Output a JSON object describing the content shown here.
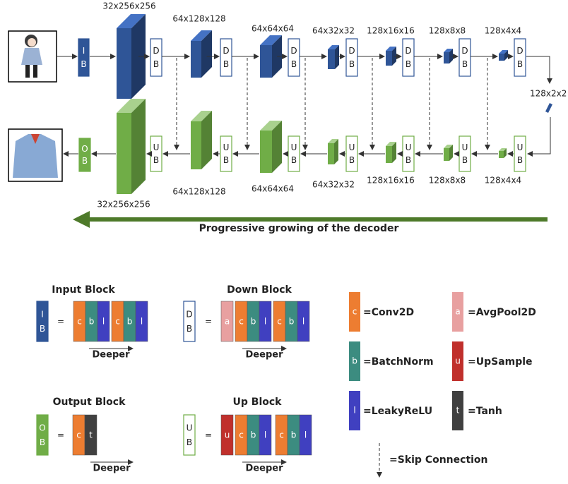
{
  "abbr": {
    "input": [
      "I",
      "B"
    ],
    "down": [
      "D",
      "B"
    ],
    "up": [
      "U",
      "B"
    ],
    "output": [
      "O",
      "B"
    ]
  },
  "encoder_sizes": [
    "32x256x256",
    "64x128x128",
    "64x64x64",
    "64x32x32",
    "128x16x16",
    "128x8x8",
    "128x4x4",
    "128x2x2"
  ],
  "decoder_sizes": [
    "32x256x256",
    "64x128x128",
    "64x64x64",
    "64x32x32",
    "128x16x16",
    "128x8x8",
    "128x4x4"
  ],
  "caption": "Progressive growing of the decoder",
  "legend": {
    "blocks": [
      {
        "title": "Input Block",
        "equals": "=",
        "layers": [
          "c",
          "b",
          "l",
          "c",
          "b",
          "l"
        ],
        "axis": "Deeper"
      },
      {
        "title": "Down Block",
        "equals": "=",
        "layers": [
          "a",
          "c",
          "b",
          "l",
          "c",
          "b",
          "l"
        ],
        "axis": "Deeper"
      },
      {
        "title": "Output Block",
        "equals": "=",
        "layers": [
          "c",
          "t"
        ],
        "axis": "Deeper"
      },
      {
        "title": "Up Block",
        "equals": "=",
        "layers": [
          "u",
          "c",
          "b",
          "l",
          "c",
          "b",
          "l"
        ],
        "axis": "Deeper"
      }
    ],
    "layers": [
      {
        "symbol": "c",
        "label": "=Conv2D"
      },
      {
        "symbol": "a",
        "label": "=AvgPool2D"
      },
      {
        "symbol": "b",
        "label": "=BatchNorm"
      },
      {
        "symbol": "u",
        "label": "=UpSample"
      },
      {
        "symbol": "l",
        "label": "=LeakyReLU"
      },
      {
        "symbol": "t",
        "label": "=Tanh"
      }
    ],
    "skip": "=Skip Connection"
  }
}
